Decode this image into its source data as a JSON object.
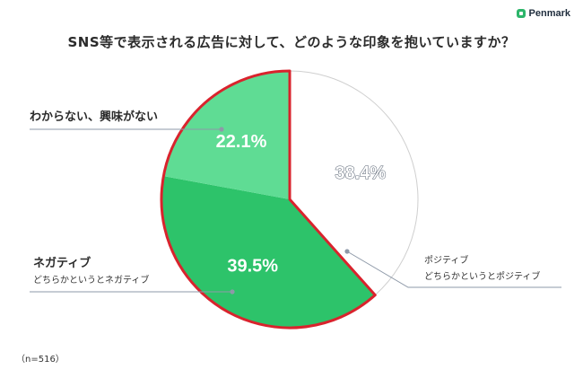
{
  "brand": {
    "name": "Penmark"
  },
  "title": "SNS等で表示される広告に対して、どのような印象を抱いていますか？",
  "note": "（n=516）",
  "colors": {
    "positive": "#ffffff",
    "negative": "#2dc36a",
    "uninterested": "#5fdc94",
    "highlight": "#d9232d",
    "leader": "#8e99a8",
    "divider": "#cfcfcf"
  },
  "chart_data": {
    "type": "pie",
    "title": "SNS等で表示される広告に対して、どのような印象を抱いていますか？",
    "n": 516,
    "slices": [
      {
        "key": "positive",
        "label": "ポジティブ",
        "sublabel": "どちらかというとポジティブ",
        "value": 38.4,
        "display": "38.4%"
      },
      {
        "key": "negative",
        "label": "ネガティブ",
        "sublabel": "どちらかというとネガティブ",
        "value": 39.5,
        "display": "39.5%"
      },
      {
        "key": "uninterested",
        "label": "わからない、興味がない",
        "sublabel": "",
        "value": 22.1,
        "display": "22.1%"
      }
    ]
  }
}
